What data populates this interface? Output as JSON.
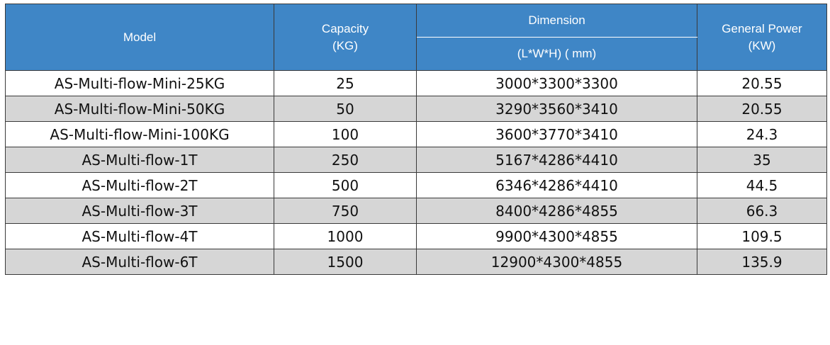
{
  "header": {
    "model": "Model",
    "capacity_line1": "Capacity",
    "capacity_line2": "(KG)",
    "dimension": "Dimension",
    "dimension_unit": "(L*W*H) ( mm)",
    "power_line1": "General Power",
    "power_line2": "(KW)"
  },
  "colors": {
    "header_bg": "#3f86c6",
    "alt_row_bg": "#d6d6d6"
  },
  "rows": [
    {
      "model": "AS-Multi-flow-Mini-25KG",
      "capacity": "25",
      "dimension": "3000*3300*3300",
      "power": "20.55"
    },
    {
      "model": "AS-Multi-flow-Mini-50KG",
      "capacity": "50",
      "dimension": "3290*3560*3410",
      "power": "20.55"
    },
    {
      "model": "AS-Multi-flow-Mini-100KG",
      "capacity": "100",
      "dimension": "3600*3770*3410",
      "power": "24.3"
    },
    {
      "model": "AS-Multi-flow-1T",
      "capacity": "250",
      "dimension": "5167*4286*4410",
      "power": "35"
    },
    {
      "model": "AS-Multi-flow-2T",
      "capacity": "500",
      "dimension": "6346*4286*4410",
      "power": "44.5"
    },
    {
      "model": "AS-Multi-flow-3T",
      "capacity": "750",
      "dimension": "8400*4286*4855",
      "power": "66.3"
    },
    {
      "model": "AS-Multi-flow-4T",
      "capacity": "1000",
      "dimension": "9900*4300*4855",
      "power": "109.5"
    },
    {
      "model": "AS-Multi-flow-6T",
      "capacity": "1500",
      "dimension": "12900*4300*4855",
      "power": "135.9"
    }
  ]
}
